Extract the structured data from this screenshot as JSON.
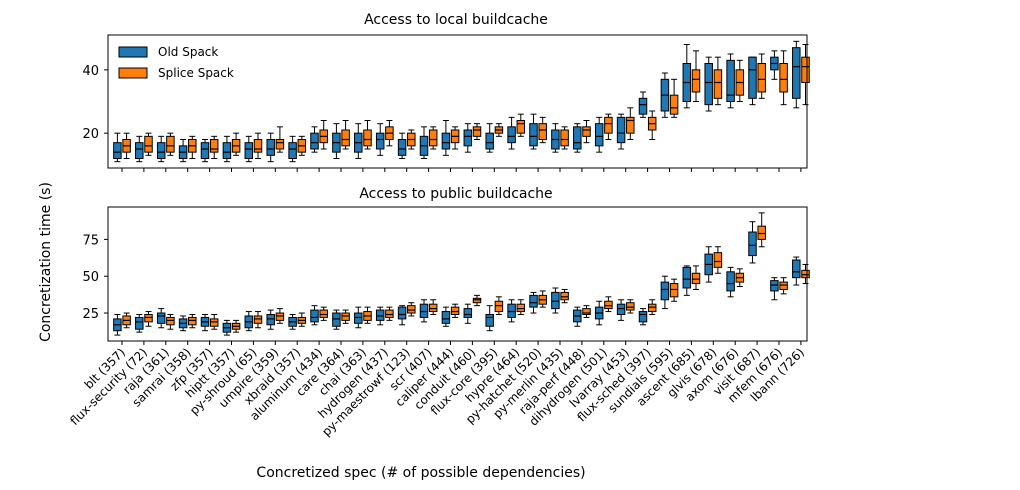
{
  "chart_data": {
    "type": "box",
    "ylabel": "Concretization time (s)",
    "xlabel": "Concretized spec (# of possible dependencies)",
    "legend": {
      "position": "top-left",
      "entries": [
        "Old Spack",
        "Splice Spack"
      ]
    },
    "colors": {
      "old": "#1f77b4",
      "splice": "#ff7f0e"
    },
    "categories": [
      "blt (357)",
      "flux-security (72)",
      "raja (361)",
      "samrai (358)",
      "zfp (357)",
      "hiptt (357)",
      "py-shroud (65)",
      "umpire (359)",
      "xbraid (357)",
      "aluminum (434)",
      "care (364)",
      "chai (363)",
      "hydrogen (437)",
      "py-maestrowf (123)",
      "scr (407)",
      "caliper (444)",
      "conduit (460)",
      "flux-core (395)",
      "hypre (464)",
      "py-hatchet (520)",
      "py-merlin (435)",
      "raja-perf (448)",
      "dihydrogen (501)",
      "lvarray (453)",
      "flux-sched (397)",
      "sundials (595)",
      "ascent (685)",
      "glvis (678)",
      "axom (676)",
      "visit (687)",
      "mfem (676)",
      "lbann (726)"
    ],
    "panels": [
      {
        "title": "Access to local buildcache",
        "ylim": [
          9,
          51
        ],
        "yticks": [
          20,
          40
        ],
        "series": [
          {
            "name": "Old Spack",
            "boxes": [
              [
                11,
                12,
                14,
                17,
                20
              ],
              [
                11,
                12,
                15,
                17,
                19
              ],
              [
                11,
                12,
                14,
                17,
                19
              ],
              [
                11,
                12,
                14,
                16,
                18
              ],
              [
                11,
                12,
                15,
                17,
                18
              ],
              [
                11,
                12,
                14,
                17,
                19
              ],
              [
                11,
                12,
                15,
                17,
                19
              ],
              [
                11,
                13,
                15,
                18,
                20
              ],
              [
                11,
                12,
                15,
                17,
                19
              ],
              [
                14,
                15,
                17,
                20,
                22
              ],
              [
                12,
                14,
                17,
                20,
                23
              ],
              [
                12,
                14,
                17,
                20,
                23
              ],
              [
                13,
                15,
                18,
                20,
                23
              ],
              [
                12,
                13,
                15,
                18,
                20
              ],
              [
                12,
                13,
                16,
                19,
                22
              ],
              [
                13,
                15,
                17,
                20,
                24
              ],
              [
                14,
                16,
                19,
                21,
                23
              ],
              [
                14,
                15,
                17,
                20,
                23
              ],
              [
                15,
                17,
                19,
                22,
                25
              ],
              [
                15,
                16,
                19,
                23,
                26
              ],
              [
                14,
                15,
                18,
                21,
                23
              ],
              [
                14,
                15,
                17,
                22,
                23
              ],
              [
                14,
                16,
                19,
                23,
                25
              ],
              [
                15,
                17,
                20,
                25,
                26
              ],
              [
                25,
                26,
                29,
                31,
                33
              ],
              [
                25,
                27,
                32,
                37,
                39
              ],
              [
                28,
                30,
                36,
                42,
                48
              ],
              [
                27,
                29,
                36,
                42,
                44
              ],
              [
                28,
                30,
                32,
                43,
                45
              ],
              [
                29,
                31,
                40,
                44,
                44
              ],
              [
                37,
                40,
                42,
                44,
                46
              ],
              [
                28,
                31,
                41,
                47,
                49
              ]
            ]
          },
          {
            "name": "Splice Spack",
            "boxes": [
              [
                12,
                14,
                16,
                18,
                20
              ],
              [
                13,
                14,
                16,
                19,
                20
              ],
              [
                13,
                14,
                16,
                19,
                20
              ],
              [
                12,
                14,
                16,
                18,
                19
              ],
              [
                12,
                14,
                15,
                18,
                19
              ],
              [
                13,
                14,
                16,
                18,
                20
              ],
              [
                12,
                14,
                15,
                18,
                20
              ],
              [
                14,
                15,
                17,
                18,
                22
              ],
              [
                13,
                14,
                16,
                18,
                19
              ],
              [
                15,
                17,
                19,
                21,
                24
              ],
              [
                15,
                16,
                18,
                21,
                24
              ],
              [
                15,
                16,
                18,
                21,
                24
              ],
              [
                16,
                18,
                20,
                22,
                24
              ],
              [
                15,
                16,
                18,
                20,
                21
              ],
              [
                15,
                16,
                18,
                21,
                22
              ],
              [
                15,
                17,
                19,
                21,
                22
              ],
              [
                18,
                19,
                21,
                22,
                23
              ],
              [
                19,
                20,
                21,
                22,
                23
              ],
              [
                19,
                20,
                23,
                24,
                26
              ],
              [
                17,
                18,
                21,
                23,
                25
              ],
              [
                15,
                16,
                18,
                21,
                22
              ],
              [
                17,
                19,
                21,
                22,
                24
              ],
              [
                18,
                20,
                23,
                25,
                26
              ],
              [
                18,
                20,
                24,
                25,
                28
              ],
              [
                18,
                21,
                23,
                25,
                27
              ],
              [
                25,
                26,
                28,
                32,
                37
              ],
              [
                30,
                33,
                37,
                40,
                46
              ],
              [
                29,
                31,
                36,
                40,
                44
              ],
              [
                30,
                32,
                36,
                40,
                43
              ],
              [
                31,
                33,
                37,
                42,
                45
              ],
              [
                29,
                33,
                37,
                42,
                46
              ],
              [
                29,
                36,
                41,
                44,
                48
              ]
            ]
          }
        ]
      },
      {
        "title": "Access to public buildcache",
        "ylim": [
          6,
          97
        ],
        "yticks": [
          25,
          50,
          75
        ],
        "series": [
          {
            "name": "Old Spack",
            "boxes": [
              [
                10,
                13,
                17,
                21,
                24
              ],
              [
                12,
                14,
                19,
                22,
                24
              ],
              [
                15,
                18,
                23,
                25,
                28
              ],
              [
                13,
                15,
                18,
                21,
                23
              ],
              [
                13,
                16,
                19,
                22,
                24
              ],
              [
                10,
                12,
                15,
                18,
                20
              ],
              [
                13,
                15,
                19,
                23,
                26
              ],
              [
                14,
                17,
                21,
                24,
                27
              ],
              [
                14,
                16,
                19,
                22,
                24
              ],
              [
                17,
                19,
                22,
                27,
                30
              ],
              [
                14,
                16,
                21,
                25,
                27
              ],
              [
                15,
                18,
                22,
                25,
                29
              ],
              [
                17,
                20,
                23,
                27,
                29
              ],
              [
                17,
                21,
                24,
                29,
                30
              ],
              [
                19,
                22,
                26,
                31,
                34
              ],
              [
                16,
                18,
                21,
                26,
                29
              ],
              [
                18,
                22,
                24,
                28,
                31
              ],
              [
                13,
                16,
                22,
                24,
                30
              ],
              [
                19,
                22,
                26,
                31,
                34
              ],
              [
                25,
                29,
                32,
                37,
                39
              ],
              [
                25,
                28,
                33,
                39,
                42
              ],
              [
                16,
                19,
                23,
                27,
                29
              ],
              [
                17,
                21,
                25,
                29,
                33
              ],
              [
                20,
                24,
                28,
                31,
                34
              ],
              [
                17,
                19,
                24,
                26,
                28
              ],
              [
                28,
                34,
                41,
                46,
                50
              ],
              [
                37,
                42,
                48,
                56,
                57
              ],
              [
                46,
                51,
                58,
                65,
                70
              ],
              [
                36,
                40,
                45,
                53,
                56
              ],
              [
                59,
                64,
                71,
                80,
                87
              ],
              [
                34,
                40,
                44,
                47,
                49
              ],
              [
                44,
                49,
                53,
                61,
                63
              ]
            ]
          },
          {
            "name": "Splice Spack",
            "boxes": [
              [
                15,
                17,
                20,
                23,
                25
              ],
              [
                16,
                19,
                22,
                24,
                26
              ],
              [
                14,
                17,
                20,
                22,
                24
              ],
              [
                15,
                17,
                20,
                22,
                24
              ],
              [
                14,
                16,
                19,
                21,
                24
              ],
              [
                12,
                14,
                16,
                18,
                20
              ],
              [
                15,
                18,
                21,
                23,
                26
              ],
              [
                18,
                20,
                23,
                25,
                28
              ],
              [
                16,
                18,
                20,
                22,
                25
              ],
              [
                20,
                22,
                24,
                27,
                29
              ],
              [
                18,
                20,
                23,
                25,
                27
              ],
              [
                18,
                20,
                23,
                26,
                29
              ],
              [
                20,
                22,
                24,
                27,
                29
              ],
              [
                23,
                25,
                27,
                30,
                32
              ],
              [
                24,
                26,
                28,
                31,
                34
              ],
              [
                22,
                24,
                26,
                29,
                31
              ],
              [
                30,
                32,
                34,
                35,
                37
              ],
              [
                24,
                26,
                30,
                33,
                36
              ],
              [
                24,
                26,
                28,
                31,
                34
              ],
              [
                29,
                31,
                34,
                37,
                40
              ],
              [
                32,
                34,
                36,
                39,
                41
              ],
              [
                22,
                24,
                25,
                28,
                30
              ],
              [
                26,
                28,
                30,
                33,
                36
              ],
              [
                25,
                27,
                29,
                32,
                34
              ],
              [
                24,
                26,
                29,
                31,
                34
              ],
              [
                33,
                36,
                41,
                45,
                48
              ],
              [
                41,
                45,
                48,
                52,
                57
              ],
              [
                52,
                56,
                60,
                66,
                70
              ],
              [
                43,
                46,
                49,
                52,
                55
              ],
              [
                70,
                75,
                79,
                84,
                93
              ],
              [
                38,
                41,
                44,
                46,
                49
              ],
              [
                45,
                49,
                51,
                54,
                58
              ]
            ]
          }
        ]
      }
    ]
  }
}
